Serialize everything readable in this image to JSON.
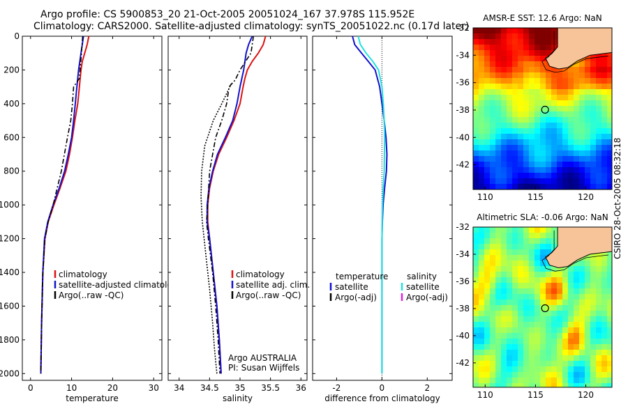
{
  "header": {
    "line1": "Argo profile: CS 5900853_20 21-Oct-2005 20051024_167 37.978S 115.952E",
    "line2": "Climatology: CARS2000. Satellite-adjusted climatology: synTS_20051022.nc (0.17d later)"
  },
  "side_text": "CSIRO 28-Oct-2005 08:32:18",
  "colors": {
    "climatology": "#dd1111",
    "satellite_temp": "#1111cc",
    "argo": "#000000",
    "satellite_sal": "#22e0e0",
    "argo_adj_sal": "#dd22dd",
    "land": "#f7c49a"
  },
  "chart_data": [
    {
      "type": "line",
      "xlabel": "temperature",
      "xticks": [
        0,
        10,
        20,
        30
      ],
      "xlim": [
        -2,
        32
      ],
      "yticks": [
        0,
        200,
        400,
        600,
        800,
        1000,
        1200,
        1400,
        1600,
        1800,
        2000
      ],
      "ylim": [
        2040,
        0
      ],
      "legend": [
        "climatology",
        "satellite-adjusted climatolog",
        "Argo(..raw -QC)"
      ],
      "series": [
        {
          "name": "climatology",
          "color": "#dd1111",
          "style": "solid",
          "x": [
            14.2,
            13.8,
            13.2,
            12.6,
            12.3,
            12.1,
            11.9,
            11.5,
            10.8,
            10.2,
            9.5,
            8.6,
            7.2,
            5.7,
            4.3,
            3.5,
            3.0,
            2.7,
            2.5
          ],
          "y": [
            0,
            50,
            100,
            150,
            200,
            250,
            300,
            400,
            500,
            600,
            700,
            800,
            900,
            1000,
            1100,
            1200,
            1400,
            1700,
            2000
          ]
        },
        {
          "name": "satellite-adjusted climatolog",
          "color": "#1111cc",
          "style": "solid",
          "x": [
            12.9,
            12.6,
            12.3,
            12.0,
            11.7,
            11.5,
            11.3,
            10.9,
            10.5,
            10.0,
            9.2,
            8.3,
            7.0,
            5.5,
            4.2,
            3.4,
            3.0,
            2.7,
            2.5
          ],
          "y": [
            0,
            50,
            100,
            150,
            200,
            250,
            300,
            400,
            500,
            600,
            700,
            800,
            900,
            1000,
            1100,
            1200,
            1400,
            1700,
            2000
          ]
        },
        {
          "name": "Argo(..raw -QC)",
          "color": "#000000",
          "style": "dashdot",
          "x": [
            12.7,
            12.4,
            11.9,
            10.5,
            10.2,
            9.8,
            9.0,
            7.5,
            5.5,
            4.3,
            3.5,
            3.0,
            2.7,
            2.5
          ],
          "y": [
            0,
            100,
            250,
            300,
            400,
            500,
            600,
            800,
            1000,
            1100,
            1200,
            1400,
            1700,
            2000
          ]
        }
      ],
      "annotations": []
    },
    {
      "type": "line",
      "xlabel": "salinity",
      "xticks": [
        34,
        34.5,
        35,
        35.5,
        36
      ],
      "xlim": [
        33.82,
        36.1
      ],
      "yticks": [
        0,
        200,
        400,
        600,
        800,
        1000,
        1200,
        1400,
        1600,
        1800,
        2000
      ],
      "ylim": [
        2040,
        0
      ],
      "legend": [
        "climatology",
        "satellite adj. clim.",
        "Argo(..raw -QC)"
      ],
      "series": [
        {
          "name": "climatology",
          "color": "#dd1111",
          "style": "solid",
          "x": [
            35.42,
            35.38,
            35.3,
            35.2,
            35.12,
            35.08,
            35.05,
            35.0,
            34.9,
            34.78,
            34.65,
            34.56,
            34.5,
            34.47,
            34.47,
            34.5,
            34.56,
            34.62,
            34.66,
            34.69
          ],
          "y": [
            0,
            50,
            100,
            150,
            200,
            250,
            300,
            400,
            500,
            600,
            700,
            800,
            900,
            1000,
            1100,
            1200,
            1400,
            1600,
            1800,
            2000
          ]
        },
        {
          "name": "satellite adj. clim.",
          "color": "#1111cc",
          "style": "solid",
          "x": [
            35.2,
            35.14,
            35.1,
            35.08,
            35.06,
            35.03,
            35.0,
            34.95,
            34.88,
            34.76,
            34.63,
            34.55,
            34.49,
            34.46,
            34.46,
            34.5,
            34.56,
            34.62,
            34.66,
            34.69
          ],
          "y": [
            0,
            50,
            100,
            150,
            200,
            250,
            300,
            400,
            500,
            600,
            700,
            800,
            900,
            1000,
            1100,
            1200,
            1400,
            1600,
            1800,
            2000
          ]
        },
        {
          "name": "Argo(..raw -QC)",
          "color": "#000000",
          "style": "dashdot",
          "x": [
            35.22,
            35.18,
            35.0,
            34.92,
            34.82,
            34.78,
            34.7,
            34.6,
            34.5,
            34.47,
            34.45,
            34.48,
            34.55,
            34.6,
            34.64,
            34.67
          ],
          "y": [
            0,
            100,
            200,
            260,
            300,
            400,
            500,
            600,
            800,
            1000,
            1100,
            1200,
            1400,
            1600,
            1800,
            2000
          ]
        },
        {
          "name": "",
          "color": "#000000",
          "style": "dotted",
          "x": [
            34.86,
            34.7,
            34.56,
            34.42,
            34.37,
            34.36,
            34.38,
            34.44,
            34.5,
            34.55,
            34.58,
            34.62
          ],
          "y": [
            280,
            400,
            500,
            650,
            800,
            950,
            1100,
            1300,
            1500,
            1700,
            1850,
            2000
          ]
        }
      ],
      "annotations": [
        "Argo AUSTRALIA",
        "PI: Susan Wijffels"
      ]
    },
    {
      "type": "line",
      "xlabel": "difference from climatology",
      "xticks": [
        -2,
        0,
        2
      ],
      "xlim": [
        -3.06,
        3.1
      ],
      "yticks": [
        0,
        200,
        400,
        600,
        800,
        1000,
        1200,
        1400,
        1600,
        1800,
        2000
      ],
      "ylim": [
        2040,
        0
      ],
      "legend_temperature": {
        "title": "temperature",
        "items": [
          "satellite",
          "Argo(-adj)"
        ]
      },
      "legend_salinity": {
        "title": "salinity",
        "items": [
          "satellite",
          "Argo(-adj)"
        ]
      },
      "series": [
        {
          "name": "satellite",
          "group": "temperature",
          "color": "#1111cc",
          "style": "solid",
          "x": [
            -1.3,
            -1.2,
            -0.9,
            -0.6,
            -0.3,
            -0.1,
            0.0,
            0.1,
            0.18,
            0.22,
            0.2,
            0.12,
            0.05,
            0.02,
            0.0,
            0.0
          ],
          "y": [
            0,
            50,
            100,
            150,
            200,
            300,
            400,
            500,
            600,
            700,
            800,
            900,
            1000,
            1100,
            1200,
            2000
          ]
        },
        {
          "name": "satellite",
          "group": "salinity",
          "color": "#22e0e0",
          "style": "solid",
          "x": [
            -1.05,
            -0.95,
            -0.7,
            -0.4,
            -0.15,
            0.0,
            0.06,
            0.1,
            0.12,
            0.1,
            0.06,
            0.02,
            0.0,
            0.0
          ],
          "y": [
            0,
            50,
            100,
            150,
            200,
            300,
            400,
            500,
            600,
            800,
            900,
            1000,
            1200,
            2000
          ]
        }
      ],
      "annotations": []
    }
  ],
  "maps": [
    {
      "title": "AMSR-E SST: 12.6 Argo: NaN",
      "xticks": [
        110,
        115,
        120
      ],
      "yticks": [
        -32,
        -34,
        -36,
        -38,
        -40,
        -42
      ],
      "xlim": [
        108.8,
        122.6
      ],
      "ylim": [
        -32,
        -43.8
      ],
      "marker": {
        "lon": 115.952,
        "lat": -37.978
      },
      "colormap": "jet",
      "shading": "warm near coast, cold to south"
    },
    {
      "title": "Altimetric SLA: -0.06 Argo: NaN",
      "xticks": [
        110,
        115,
        120
      ],
      "yticks": [
        -32,
        -34,
        -36,
        -38,
        -40,
        -42
      ],
      "xlim": [
        108.8,
        122.6
      ],
      "ylim": [
        -32,
        -43.8
      ],
      "marker": {
        "lon": 115.952,
        "lat": -37.978
      },
      "colormap": "jet",
      "shading": "green background with yellow highs and cyan lows"
    }
  ]
}
